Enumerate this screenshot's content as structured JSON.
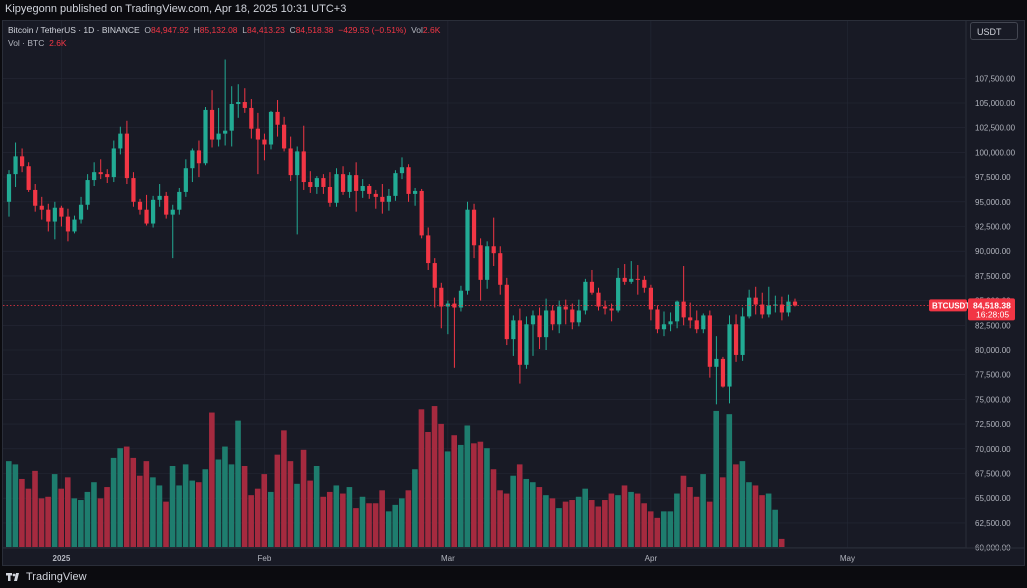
{
  "header": {
    "publisher_line": "Kipyegonn published on TradingView.com, Apr 18, 2025 10:31 UTC+3"
  },
  "legend": {
    "symbol": "Bitcoin / TetherUS · 1D · BINANCE",
    "open_label": "O",
    "open": "84,947.92",
    "high_label": "H",
    "high": "85,132.08",
    "low_label": "L",
    "low": "84,413.23",
    "close_label": "C",
    "close": "84,518.38",
    "change": "−429.53 (−0.51%)",
    "vol_label": "Vol",
    "vol": "2.6K",
    "vol_row_label": "Vol · BTC",
    "vol_row_value": "2.6K"
  },
  "currency_button": "USDT",
  "price_tag": {
    "symbol": "BTCUSDT",
    "price": "84,518.38",
    "countdown": "16:28:05"
  },
  "footer": {
    "brand": "TradingView"
  },
  "colors": {
    "up": "#22ab94",
    "down": "#f23645",
    "vol_up": "#1e7d6e",
    "vol_down": "#a52a3f",
    "background": "#181a25",
    "grid": "#252836"
  },
  "chart_data": {
    "type": "candlestick",
    "interval": "1D",
    "ylim": [
      57500,
      110500
    ],
    "y_ticks": [
      60000,
      62500,
      65000,
      67500,
      70000,
      72500,
      75000,
      77500,
      80000,
      82500,
      85000,
      87500,
      90000,
      92500,
      95000,
      97500,
      100000,
      102500,
      105000,
      107500
    ],
    "y_tick_labels": [
      "60,000.00",
      "62,500.00",
      "65,000.00",
      "67,500.00",
      "70,000.00",
      "72,500.00",
      "75,000.00",
      "77,500.00",
      "80,000.00",
      "82,500.00",
      "85,000.00",
      "87,500.00",
      "90,000.00",
      "92,500.00",
      "95,000.00",
      "97,500.00",
      "100,000.00",
      "102,500.00",
      "105,000.00",
      "107,500.00"
    ],
    "x_labels": [
      {
        "label": "2025",
        "index": 8
      },
      {
        "label": "Feb",
        "index": 39
      },
      {
        "label": "Mar",
        "index": 67
      },
      {
        "label": "Apr",
        "index": 98
      },
      {
        "label": "May",
        "index": 128
      }
    ],
    "last_price": 84518.38,
    "ohlc": [
      [
        95000,
        98200,
        93500,
        97800
      ],
      [
        97800,
        101000,
        96500,
        99600
      ],
      [
        99600,
        100400,
        98000,
        98600
      ],
      [
        98600,
        99000,
        96000,
        96200
      ],
      [
        96200,
        96800,
        94000,
        94600
      ],
      [
        94600,
        95500,
        93200,
        94200
      ],
      [
        94200,
        94800,
        92000,
        93000
      ],
      [
        93000,
        95000,
        91200,
        94400
      ],
      [
        94400,
        94600,
        92500,
        93500
      ],
      [
        93500,
        94300,
        91000,
        92000
      ],
      [
        92000,
        93600,
        91800,
        93200
      ],
      [
        93200,
        95500,
        92800,
        94700
      ],
      [
        94700,
        97800,
        94200,
        97200
      ],
      [
        97200,
        99000,
        96600,
        98000
      ],
      [
        98000,
        99300,
        97300,
        97800
      ],
      [
        97800,
        98300,
        96900,
        97500
      ],
      [
        97500,
        101200,
        97000,
        100400
      ],
      [
        100400,
        102600,
        99800,
        101900
      ],
      [
        101900,
        103200,
        96800,
        97400
      ],
      [
        97400,
        98000,
        94500,
        95000
      ],
      [
        95000,
        95300,
        93700,
        94200
      ],
      [
        94200,
        95700,
        92600,
        92800
      ],
      [
        92800,
        95600,
        92400,
        95200
      ],
      [
        95200,
        96800,
        94500,
        95600
      ],
      [
        95600,
        96000,
        93300,
        93700
      ],
      [
        93700,
        94700,
        89300,
        94200
      ],
      [
        94200,
        96400,
        93700,
        96000
      ],
      [
        96000,
        99300,
        95500,
        98400
      ],
      [
        98400,
        100400,
        97000,
        100200
      ],
      [
        100200,
        101200,
        97500,
        98900
      ],
      [
        98900,
        104600,
        98700,
        104300
      ],
      [
        104300,
        106300,
        100500,
        101300
      ],
      [
        101300,
        104500,
        100600,
        101900
      ],
      [
        101900,
        109400,
        100700,
        102200
      ],
      [
        102200,
        106700,
        100600,
        104900
      ],
      [
        104900,
        106900,
        103500,
        105100
      ],
      [
        105100,
        106500,
        104000,
        104500
      ],
      [
        104500,
        105400,
        101400,
        102400
      ],
      [
        102400,
        104000,
        97800,
        101300
      ],
      [
        101300,
        101900,
        99200,
        100800
      ],
      [
        100800,
        104200,
        100300,
        104100
      ],
      [
        104100,
        105300,
        101600,
        102800
      ],
      [
        102800,
        103600,
        100100,
        100400
      ],
      [
        100400,
        101600,
        97100,
        97700
      ],
      [
        97700,
        100600,
        91700,
        100100
      ],
      [
        100100,
        102700,
        96200,
        97000
      ],
      [
        97000,
        98100,
        95900,
        96500
      ],
      [
        96500,
        97600,
        95800,
        97400
      ],
      [
        97400,
        97800,
        95800,
        96500
      ],
      [
        96500,
        98000,
        94500,
        94900
      ],
      [
        94900,
        98400,
        94500,
        97800
      ],
      [
        97800,
        98600,
        95700,
        96000
      ],
      [
        96000,
        98000,
        95400,
        97700
      ],
      [
        97700,
        99000,
        94000,
        96100
      ],
      [
        96100,
        97300,
        95400,
        96600
      ],
      [
        96600,
        96800,
        95300,
        95800
      ],
      [
        95800,
        96200,
        94300,
        95500
      ],
      [
        95500,
        96800,
        93800,
        95000
      ],
      [
        95000,
        96300,
        94100,
        95600
      ],
      [
        95600,
        98200,
        95100,
        97900
      ],
      [
        97900,
        99500,
        97300,
        98500
      ],
      [
        98500,
        98800,
        95000,
        95800
      ],
      [
        95800,
        96400,
        94600,
        96100
      ],
      [
        96100,
        96300,
        91300,
        91600
      ],
      [
        91600,
        92400,
        88100,
        88800
      ],
      [
        88800,
        89300,
        84300,
        86300
      ],
      [
        86300,
        86800,
        82200,
        84400
      ],
      [
        84400,
        85000,
        81600,
        84700
      ],
      [
        84700,
        85300,
        78200,
        84300
      ],
      [
        84300,
        86500,
        83900,
        86000
      ],
      [
        86000,
        95000,
        85600,
        94200
      ],
      [
        94200,
        94800,
        89300,
        90600
      ],
      [
        90600,
        91300,
        85000,
        87100
      ],
      [
        87100,
        91000,
        86200,
        90500
      ],
      [
        90500,
        93400,
        88500,
        89800
      ],
      [
        89800,
        90500,
        85600,
        86600
      ],
      [
        86600,
        87300,
        80500,
        81100
      ],
      [
        81100,
        83500,
        79400,
        83000
      ],
      [
        83000,
        84200,
        76600,
        78500
      ],
      [
        78500,
        83400,
        78100,
        82600
      ],
      [
        82600,
        84000,
        79400,
        83500
      ],
      [
        83500,
        84300,
        80100,
        81300
      ],
      [
        81300,
        85200,
        80000,
        84000
      ],
      [
        84000,
        84500,
        82000,
        82600
      ],
      [
        82600,
        85000,
        81700,
        84400
      ],
      [
        84400,
        85100,
        82600,
        84100
      ],
      [
        84100,
        84700,
        82100,
        82800
      ],
      [
        82800,
        85100,
        82400,
        84000
      ],
      [
        84000,
        87200,
        83600,
        86900
      ],
      [
        86900,
        88100,
        85600,
        85800
      ],
      [
        85800,
        86300,
        84000,
        84400
      ],
      [
        84400,
        85000,
        83600,
        84200
      ],
      [
        84200,
        84700,
        82900,
        84000
      ],
      [
        84000,
        88300,
        83800,
        87300
      ],
      [
        87300,
        88700,
        86600,
        86900
      ],
      [
        86900,
        89000,
        86700,
        87200
      ],
      [
        87200,
        88600,
        85600,
        87100
      ],
      [
        87100,
        87500,
        85800,
        86300
      ],
      [
        86300,
        86600,
        83000,
        84100
      ],
      [
        84100,
        84500,
        81700,
        82100
      ],
      [
        82100,
        83900,
        81400,
        82600
      ],
      [
        82600,
        83800,
        81900,
        82900
      ],
      [
        82900,
        85000,
        82200,
        84900
      ],
      [
        84900,
        88500,
        82500,
        83300
      ],
      [
        83300,
        84800,
        82200,
        83000
      ],
      [
        83000,
        84000,
        81700,
        82100
      ],
      [
        82100,
        83700,
        81700,
        83500
      ],
      [
        83500,
        84000,
        77200,
        78300
      ],
      [
        78300,
        81400,
        74500,
        79100
      ],
      [
        79100,
        79300,
        76200,
        76300
      ],
      [
        76300,
        83500,
        74600,
        82600
      ],
      [
        82600,
        83600,
        78800,
        79500
      ],
      [
        79500,
        84300,
        78900,
        83400
      ],
      [
        83400,
        86100,
        83200,
        85300
      ],
      [
        85300,
        86400,
        83600,
        84600
      ],
      [
        84600,
        85800,
        83200,
        83600
      ],
      [
        83600,
        86400,
        83300,
        84500
      ],
      [
        84500,
        85500,
        83800,
        84600
      ],
      [
        84600,
        85400,
        83000,
        83800
      ],
      [
        83800,
        85600,
        83400,
        84900
      ],
      [
        84900,
        85200,
        84400,
        84500
      ]
    ],
    "volume": [
      5.3,
      5.1,
      4.2,
      3.6,
      4.7,
      3.0,
      3.1,
      4.5,
      3.6,
      4.3,
      3.0,
      2.9,
      3.4,
      4.0,
      3.0,
      3.7,
      5.5,
      6.1,
      6.2,
      5.5,
      4.4,
      5.3,
      4.3,
      3.8,
      2.8,
      5.0,
      3.8,
      5.1,
      4.1,
      4.0,
      4.8,
      8.3,
      5.4,
      6.2,
      5.1,
      7.8,
      5.0,
      3.2,
      3.6,
      4.5,
      3.4,
      5.7,
      7.2,
      5.3,
      3.9,
      6.0,
      4.1,
      5.0,
      3.1,
      3.4,
      3.8,
      3.3,
      3.7,
      2.4,
      3.1,
      2.7,
      2.7,
      3.5,
      2.2,
      2.6,
      3.0,
      3.5,
      4.8,
      8.5,
      7.1,
      8.7,
      7.6,
      5.9,
      6.9,
      6.3,
      7.5,
      6.4,
      6.5,
      6.1,
      4.8,
      3.5,
      3.3,
      4.4,
      5.1,
      4.2,
      4.0,
      3.7,
      3.2,
      3.0,
      2.4,
      2.8,
      2.9,
      3.1,
      3.6,
      2.9,
      2.5,
      2.9,
      3.3,
      3.2,
      3.8,
      3.4,
      3.3,
      2.7,
      2.2,
      1.8,
      2.2,
      2.2,
      3.3,
      4.4,
      3.7,
      3.1,
      4.5,
      2.8,
      8.4,
      4.3,
      8.2,
      5.1,
      5.3,
      4.0,
      3.8,
      3.2,
      3.3,
      2.3,
      0.5
    ]
  }
}
